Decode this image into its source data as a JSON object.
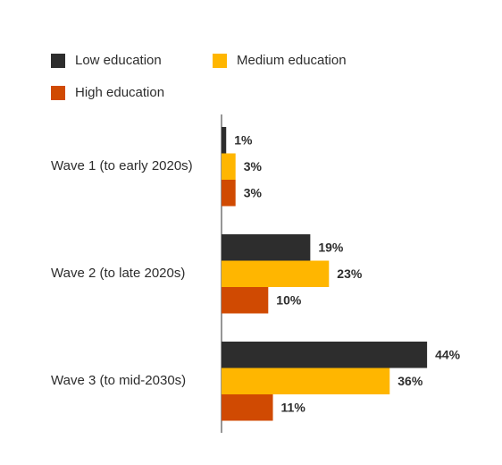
{
  "chart_data": {
    "type": "hbar",
    "categories": [
      "Wave 1 (to early 2020s)",
      "Wave 2 (to late 2020s)",
      "Wave 3 (to mid-2030s)"
    ],
    "series": [
      {
        "name": "Low education",
        "color": "#2d2d2d",
        "values": [
          1,
          19,
          44
        ],
        "value_labels": [
          "1%",
          "19%",
          "44%"
        ]
      },
      {
        "name": "Medium education",
        "color": "#ffb600",
        "values": [
          3,
          23,
          36
        ],
        "value_labels": [
          "3%",
          "23%",
          "36%"
        ]
      },
      {
        "name": "High education",
        "color": "#d04a02",
        "values": [
          3,
          10,
          11
        ],
        "value_labels": [
          "3%",
          "10%",
          "11%"
        ]
      }
    ]
  }
}
